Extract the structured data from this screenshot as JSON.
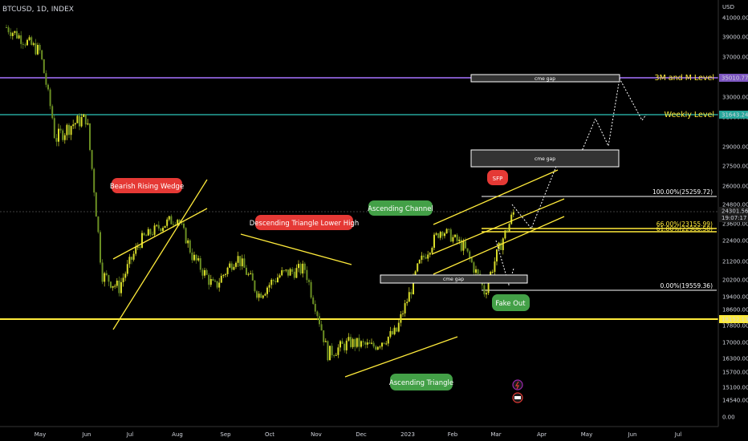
{
  "symbol": "BTCUSD, 1D, INDEX",
  "currency": "USD",
  "colors": {
    "background": "#000000",
    "up": "#d8dc2a",
    "down": "#6b8f23",
    "yellow": "#ffeb3b",
    "purple": "#7e57c2",
    "teal": "#26a69a",
    "red_label": "#e53935",
    "green_label": "#43a047"
  },
  "price_axis": {
    "ticks": [
      "41000.00",
      "39000.00",
      "37000.00",
      "35000.00",
      "33000.00",
      "31000.00",
      "29000.00",
      "27500.00",
      "26000.00",
      "24800.00",
      "23600.00",
      "22400.00",
      "21200.00",
      "20200.00",
      "19400.00",
      "18600.00",
      "17800.00",
      "17000.00",
      "16300.00",
      "15700.00",
      "15100.00",
      "14540.00",
      "0.00"
    ]
  },
  "price_badges": {
    "level_35010": "35010.77",
    "level_31643": "31643.24",
    "current_price": "24301.56",
    "countdown": "19:07:17",
    "level_18152": "18152.13"
  },
  "time_axis": {
    "ticks": [
      "May",
      "Jun",
      "Jul",
      "Aug",
      "Sep",
      "Oct",
      "Nov",
      "Dec",
      "2023",
      "Feb",
      "Mar",
      "Apr",
      "May",
      "Jun",
      "Jul"
    ]
  },
  "labels": {
    "bearish_rising_wedge": "Bearish Rising Wedge",
    "descending_triangle": "Descending Triangle Lower High",
    "ascending_channel": "Ascending Channel",
    "ascending_triangle": "Ascending Triangle",
    "sfp": "SFP",
    "fake_out": "Fake Out",
    "cme_gap": "cme gap",
    "level_3m_m": "3M and M Level",
    "weekly_level": "Weekly Level"
  },
  "fib_levels": {
    "fib_100": "100.00%(25259.72)",
    "fib_66": "66.00%(23155.99)",
    "fib_61": "61.80%(22906.58)",
    "fib_0": "0.00%(19559.36)"
  },
  "chart_data": {
    "type": "candlestick",
    "title": "BTCUSD, 1D, INDEX",
    "ylabel": "USD",
    "x": [
      "May",
      "Jun",
      "Jul",
      "Aug",
      "Sep",
      "Oct",
      "Nov",
      "Dec",
      "2023",
      "Feb",
      "Mar"
    ],
    "ylim": [
      14540,
      42000
    ],
    "close_trace": [
      {
        "x": "May",
        "y": 40000
      },
      {
        "x": "May",
        "y": 37500
      },
      {
        "x": "May",
        "y": 29500
      },
      {
        "x": "Jun",
        "y": 30500
      },
      {
        "x": "Jun",
        "y": 31000
      },
      {
        "x": "Jun",
        "y": 20500
      },
      {
        "x": "Jul",
        "y": 19800
      },
      {
        "x": "Jul",
        "y": 22500
      },
      {
        "x": "Aug",
        "y": 23500
      },
      {
        "x": "Aug",
        "y": 24000
      },
      {
        "x": "Aug",
        "y": 21500
      },
      {
        "x": "Sep",
        "y": 19800
      },
      {
        "x": "Sep",
        "y": 21500
      },
      {
        "x": "Oct",
        "y": 19500
      },
      {
        "x": "Oct",
        "y": 20500
      },
      {
        "x": "Nov",
        "y": 20800
      },
      {
        "x": "Nov",
        "y": 16500
      },
      {
        "x": "Dec",
        "y": 17000
      },
      {
        "x": "Dec",
        "y": 16800
      },
      {
        "x": "2023",
        "y": 17500
      },
      {
        "x": "2023",
        "y": 21000
      },
      {
        "x": "Feb",
        "y": 23200
      },
      {
        "x": "Feb",
        "y": 22000
      },
      {
        "x": "Mar",
        "y": 19600
      },
      {
        "x": "Mar",
        "y": 24300
      }
    ],
    "horizontal_levels": [
      35010.77,
      31643.24,
      25259.72,
      23155.99,
      22906.58,
      19559.36,
      18152.13
    ]
  }
}
